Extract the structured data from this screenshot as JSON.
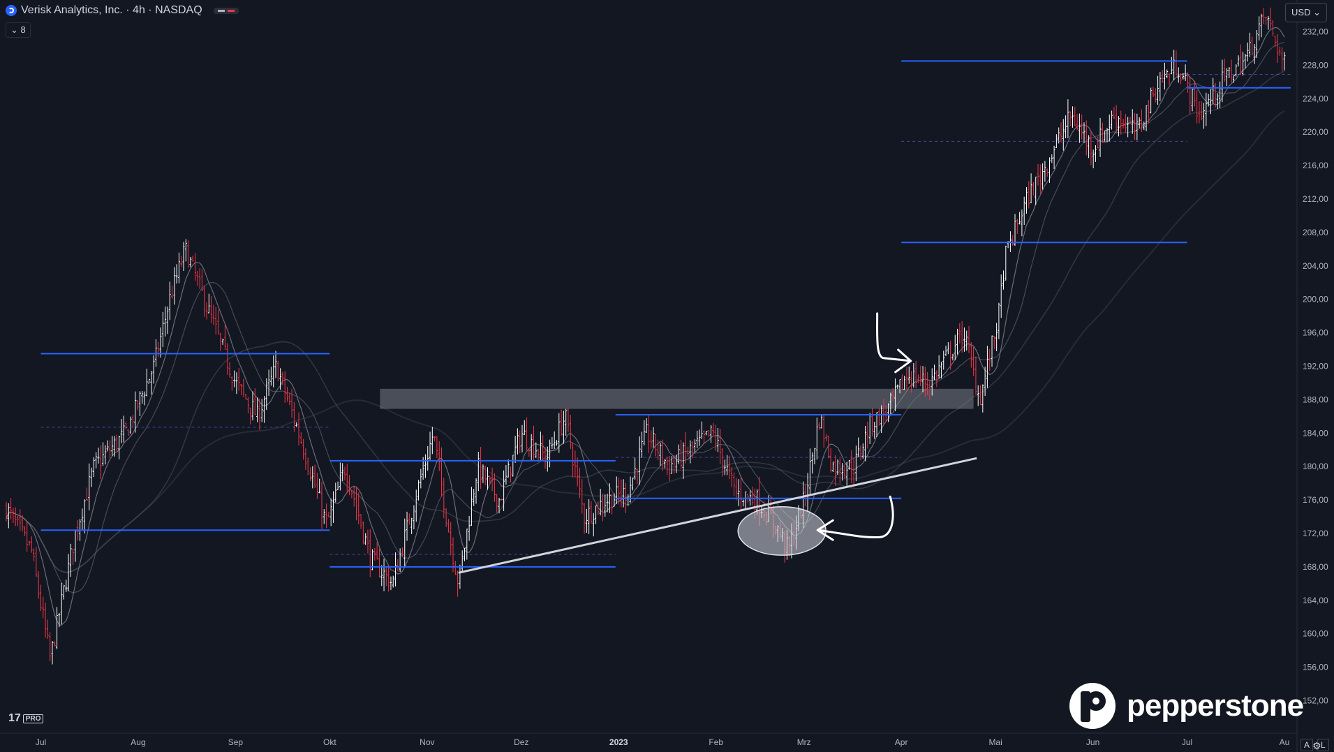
{
  "header": {
    "symbol_title": "Verisk Analytics, Inc. · 4h · NASDAQ",
    "indicators_count": "8",
    "currency": "USD"
  },
  "logos": {
    "tradingview": "17",
    "tradingview_tier": "PRO",
    "broker": "pepperstone"
  },
  "bottom_right": {
    "auto": "A",
    "log": "L"
  },
  "colors": {
    "background": "#131722",
    "up_candle": "#ffffff",
    "down_candle": "#f23645",
    "level_line": "#2962ff",
    "trendline": "#d1d4dc",
    "zone": "#787b86",
    "ma": "#b2b5be"
  },
  "icons": [
    "tradingview-logo-icon",
    "chevron-down-icon",
    "settings-gear-icon",
    "pepperstone-logo-icon"
  ],
  "chart_data": {
    "type": "candlestick",
    "title": "",
    "timeframe": "4h",
    "currency": "USD",
    "x_axis": {
      "tick_labels": [
        "Jul",
        "Aug",
        "Sep",
        "Okt",
        "Nov",
        "Dez",
        "2023",
        "Feb",
        "Mrz",
        "Apr",
        "Mai",
        "Jun",
        "Jul",
        "Au"
      ],
      "range": [
        "2022-06-20",
        "2023-08-05"
      ]
    },
    "y_axis": {
      "range": [
        150,
        234
      ],
      "ticks": [
        152,
        156,
        160,
        164,
        168,
        172,
        176,
        180,
        184,
        188,
        192,
        196,
        200,
        204,
        208,
        212,
        216,
        220,
        224,
        228
      ],
      "tick_labels": [
        "152,00",
        "156,00",
        "160,00",
        "164,00",
        "168,00",
        "172,00",
        "176,00",
        "180,00",
        "184,00",
        "188,00",
        "192,00",
        "196,00",
        "200,00",
        "204,00",
        "208,00",
        "212,00",
        "216,00",
        "220,00",
        "224,00",
        "228,00"
      ],
      "partial_top_label": "232,00"
    },
    "price_path": [
      [
        "2022-06-20",
        175
      ],
      [
        "2022-06-28",
        170
      ],
      [
        "2022-07-04",
        157
      ],
      [
        "2022-07-12",
        172
      ],
      [
        "2022-07-18",
        180
      ],
      [
        "2022-07-28",
        184
      ],
      [
        "2022-08-06",
        192
      ],
      [
        "2022-08-11",
        200
      ],
      [
        "2022-08-16",
        206
      ],
      [
        "2022-08-24",
        198
      ],
      [
        "2022-09-01",
        190
      ],
      [
        "2022-09-08",
        186
      ],
      [
        "2022-09-14",
        192
      ],
      [
        "2022-09-22",
        183
      ],
      [
        "2022-09-30",
        173
      ],
      [
        "2022-10-06",
        180
      ],
      [
        "2022-10-14",
        169
      ],
      [
        "2022-10-21",
        166
      ],
      [
        "2022-10-28",
        176
      ],
      [
        "2022-11-03",
        184
      ],
      [
        "2022-11-08",
        172
      ],
      [
        "2022-11-11",
        166
      ],
      [
        "2022-11-17",
        180
      ],
      [
        "2022-11-24",
        176
      ],
      [
        "2022-12-01",
        184
      ],
      [
        "2022-12-09",
        181
      ],
      [
        "2022-12-15",
        186
      ],
      [
        "2022-12-21",
        174
      ],
      [
        "2022-12-28",
        176
      ],
      [
        "2023-01-04",
        177
      ],
      [
        "2023-01-10",
        184
      ],
      [
        "2023-01-17",
        180
      ],
      [
        "2023-01-24",
        182
      ],
      [
        "2023-01-31",
        184
      ],
      [
        "2023-02-07",
        177
      ],
      [
        "2023-02-14",
        176
      ],
      [
        "2023-02-20",
        173
      ],
      [
        "2023-02-24",
        170
      ],
      [
        "2023-03-01",
        176
      ],
      [
        "2023-03-06",
        186
      ],
      [
        "2023-03-10",
        180
      ],
      [
        "2023-03-17",
        180
      ],
      [
        "2023-03-22",
        185
      ],
      [
        "2023-03-28",
        187
      ],
      [
        "2023-04-03",
        191
      ],
      [
        "2023-04-10",
        190
      ],
      [
        "2023-04-17",
        194
      ],
      [
        "2023-04-21",
        196
      ],
      [
        "2023-04-26",
        188
      ],
      [
        "2023-05-02",
        198
      ],
      [
        "2023-05-04",
        205
      ],
      [
        "2023-05-11",
        212
      ],
      [
        "2023-05-17",
        216
      ],
      [
        "2023-05-25",
        222
      ],
      [
        "2023-06-01",
        218
      ],
      [
        "2023-06-08",
        222
      ],
      [
        "2023-06-15",
        220
      ],
      [
        "2023-06-22",
        226
      ],
      [
        "2023-06-28",
        228
      ],
      [
        "2023-07-05",
        222
      ],
      [
        "2023-07-12",
        226
      ],
      [
        "2023-07-20",
        229
      ],
      [
        "2023-07-26",
        234
      ],
      [
        "2023-08-01",
        228
      ]
    ],
    "horizontal_levels": [
      {
        "price": 193.5,
        "from": "2022-07-01",
        "to": "2022-10-01"
      },
      {
        "price": 172.4,
        "from": "2022-07-01",
        "to": "2022-10-01"
      },
      {
        "price": 180.7,
        "from": "2022-10-01",
        "to": "2022-12-31"
      },
      {
        "price": 168.0,
        "from": "2022-10-01",
        "to": "2022-12-31"
      },
      {
        "price": 186.2,
        "from": "2022-12-31",
        "to": "2023-04-01"
      },
      {
        "price": 176.2,
        "from": "2022-12-31",
        "to": "2023-04-01"
      },
      {
        "price": 228.5,
        "from": "2023-04-01",
        "to": "2023-07-01"
      },
      {
        "price": 206.8,
        "from": "2023-04-01",
        "to": "2023-07-01"
      },
      {
        "price": 225.3,
        "from": "2023-07-01",
        "to": "2023-08-03"
      }
    ],
    "dashed_levels": [
      {
        "price": 184.7,
        "from": "2022-07-01",
        "to": "2022-10-01"
      },
      {
        "price": 169.5,
        "from": "2022-10-01",
        "to": "2022-12-31"
      },
      {
        "price": 181.1,
        "from": "2022-12-31",
        "to": "2023-04-01"
      },
      {
        "price": 218.9,
        "from": "2023-04-01",
        "to": "2023-07-01"
      },
      {
        "price": 226.9,
        "from": "2023-07-01",
        "to": "2023-08-03"
      }
    ],
    "resistance_zone": {
      "from": "2022-10-17",
      "to": "2023-04-24",
      "low": 186.9,
      "high": 189.3
    },
    "trendline": {
      "start": [
        "2022-11-11",
        167.3
      ],
      "end": [
        "2023-04-25",
        181.0
      ]
    },
    "annotations": [
      {
        "type": "ellipse",
        "center": [
          "2023-02-22",
          172.3
        ],
        "width_days": 28,
        "height_price": 5.8
      },
      {
        "type": "arrow",
        "direction": "right",
        "target": [
          "2023-04-04",
          192.3
        ]
      },
      {
        "type": "arrow",
        "direction": "left",
        "target": [
          "2023-03-04",
          172.4
        ]
      }
    ]
  }
}
